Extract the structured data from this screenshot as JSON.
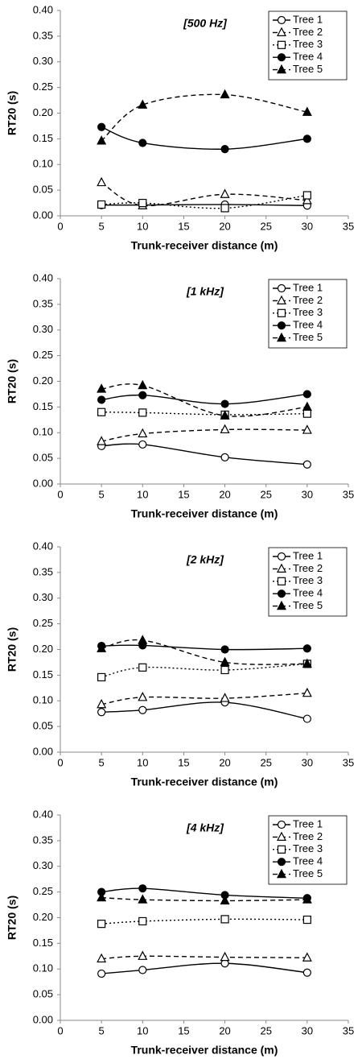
{
  "chart_data": [
    {
      "type": "line",
      "title": "[500 Hz]",
      "x_label": "Trunk-receiver distance (m)",
      "y_label": "RT20 (s)",
      "x": [
        5,
        10,
        20,
        30
      ],
      "series": [
        {
          "name": "Tree 1",
          "color": "#000000",
          "values": [
            0.021,
            0.021,
            0.022,
            0.02
          ]
        },
        {
          "name": "Tree 2",
          "color": "#000000",
          "values": [
            0.065,
            0.02,
            0.042,
            0.03
          ]
        },
        {
          "name": "Tree 3",
          "color": "#000000",
          "values": [
            0.022,
            0.025,
            0.015,
            0.04
          ]
        },
        {
          "name": "Tree 4",
          "color": "#000000",
          "values": [
            0.173,
            0.142,
            0.13,
            0.15
          ]
        },
        {
          "name": "Tree 5",
          "color": "#000000",
          "values": [
            0.146,
            0.216,
            0.236,
            0.202
          ]
        }
      ],
      "xlim": [
        0,
        35
      ],
      "xticks": [
        0,
        5,
        10,
        15,
        20,
        25,
        30,
        35
      ],
      "ylim": [
        0,
        0.4
      ],
      "yticks": [
        {
          "value": 0,
          "label": "0.00"
        },
        {
          "value": 0.05,
          "label": "0.05"
        },
        {
          "value": 0.1,
          "label": "0.10"
        },
        {
          "value": 0.15,
          "label": "0.15"
        },
        {
          "value": 0.2,
          "label": "0.20"
        },
        {
          "value": 0.25,
          "label": "0.25"
        },
        {
          "value": 0.3,
          "label": "0.30"
        },
        {
          "value": 0.35,
          "label": "0.35"
        },
        {
          "value": 0.4,
          "label": "0.40"
        }
      ],
      "legend": "upper right"
    },
    {
      "type": "line",
      "title": "[1 kHz]",
      "x_label": "Trunk-receiver distance (m)",
      "y_label": "RT20 (s)",
      "x": [
        5,
        10,
        20,
        30
      ],
      "series": [
        {
          "name": "Tree 1",
          "color": "#000000",
          "values": [
            0.074,
            0.077,
            0.052,
            0.038
          ]
        },
        {
          "name": "Tree 2",
          "color": "#000000",
          "values": [
            0.083,
            0.098,
            0.106,
            0.105
          ]
        },
        {
          "name": "Tree 3",
          "color": "#000000",
          "values": [
            0.14,
            0.139,
            0.135,
            0.137
          ]
        },
        {
          "name": "Tree 4",
          "color": "#000000",
          "values": [
            0.164,
            0.173,
            0.156,
            0.175
          ]
        },
        {
          "name": "Tree 5",
          "color": "#000000",
          "values": [
            0.185,
            0.192,
            0.133,
            0.15
          ]
        }
      ],
      "xlim": [
        0,
        35
      ],
      "xticks": [
        0,
        5,
        10,
        15,
        20,
        25,
        30,
        35
      ],
      "ylim": [
        0,
        0.4
      ],
      "yticks": [
        {
          "value": 0,
          "label": "0.00"
        },
        {
          "value": 0.05,
          "label": "0.05"
        },
        {
          "value": 0.1,
          "label": "0.10"
        },
        {
          "value": 0.15,
          "label": "0.15"
        },
        {
          "value": 0.2,
          "label": "0.20"
        },
        {
          "value": 0.25,
          "label": "0.25"
        },
        {
          "value": 0.3,
          "label": "0.30"
        },
        {
          "value": 0.35,
          "label": "0.35"
        },
        {
          "value": 0.4,
          "label": "0.40"
        }
      ],
      "legend": "upper right"
    },
    {
      "type": "line",
      "title": "[2 kHz]",
      "x_label": "Trunk-receiver distance (m)",
      "y_label": "RT20 (s)",
      "x": [
        5,
        10,
        20,
        30
      ],
      "series": [
        {
          "name": "Tree 1",
          "color": "#000000",
          "values": [
            0.078,
            0.082,
            0.097,
            0.065
          ]
        },
        {
          "name": "Tree 2",
          "color": "#000000",
          "values": [
            0.093,
            0.107,
            0.105,
            0.115
          ]
        },
        {
          "name": "Tree 3",
          "color": "#000000",
          "values": [
            0.146,
            0.165,
            0.16,
            0.172
          ]
        },
        {
          "name": "Tree 4",
          "color": "#000000",
          "values": [
            0.207,
            0.208,
            0.2,
            0.202
          ]
        },
        {
          "name": "Tree 5",
          "color": "#000000",
          "values": [
            0.202,
            0.218,
            0.175,
            0.172
          ]
        }
      ],
      "xlim": [
        0,
        35
      ],
      "xticks": [
        0,
        5,
        10,
        15,
        20,
        25,
        30,
        35
      ],
      "ylim": [
        0,
        0.4
      ],
      "yticks": [
        {
          "value": 0,
          "label": "0.00"
        },
        {
          "value": 0.05,
          "label": "0.05"
        },
        {
          "value": 0.1,
          "label": "0.10"
        },
        {
          "value": 0.15,
          "label": "0.15"
        },
        {
          "value": 0.2,
          "label": "0.20"
        },
        {
          "value": 0.25,
          "label": "0.25"
        },
        {
          "value": 0.3,
          "label": "0.30"
        },
        {
          "value": 0.35,
          "label": "0.35"
        },
        {
          "value": 0.4,
          "label": "0.40"
        }
      ],
      "legend": "upper right"
    },
    {
      "type": "line",
      "title": "[4 kHz]",
      "x_label": "Trunk-receiver distance (m)",
      "y_label": "RT20 (s)",
      "x": [
        5,
        10,
        20,
        30
      ],
      "series": [
        {
          "name": "Tree 1",
          "color": "#000000",
          "values": [
            0.091,
            0.098,
            0.111,
            0.093
          ]
        },
        {
          "name": "Tree 2",
          "color": "#000000",
          "values": [
            0.12,
            0.125,
            0.123,
            0.122
          ]
        },
        {
          "name": "Tree 3",
          "color": "#000000",
          "values": [
            0.188,
            0.193,
            0.197,
            0.196
          ]
        },
        {
          "name": "Tree 4",
          "color": "#000000",
          "values": [
            0.25,
            0.257,
            0.244,
            0.238
          ]
        },
        {
          "name": "Tree 5",
          "color": "#000000",
          "values": [
            0.239,
            0.235,
            0.233,
            0.235
          ]
        }
      ],
      "xlim": [
        0,
        35
      ],
      "xticks": [
        0,
        5,
        10,
        15,
        20,
        25,
        30,
        35
      ],
      "ylim": [
        0,
        0.4
      ],
      "yticks": [
        {
          "value": 0,
          "label": "0.00"
        },
        {
          "value": 0.05,
          "label": "0.05"
        },
        {
          "value": 0.1,
          "label": "0.10"
        },
        {
          "value": 0.15,
          "label": "0.15"
        },
        {
          "value": 0.2,
          "label": "0.20"
        },
        {
          "value": 0.25,
          "label": "0.25"
        },
        {
          "value": 0.3,
          "label": "0.30"
        },
        {
          "value": 0.35,
          "label": "0.35"
        },
        {
          "value": 0.4,
          "label": "0.40"
        }
      ],
      "legend": "upper right"
    }
  ]
}
